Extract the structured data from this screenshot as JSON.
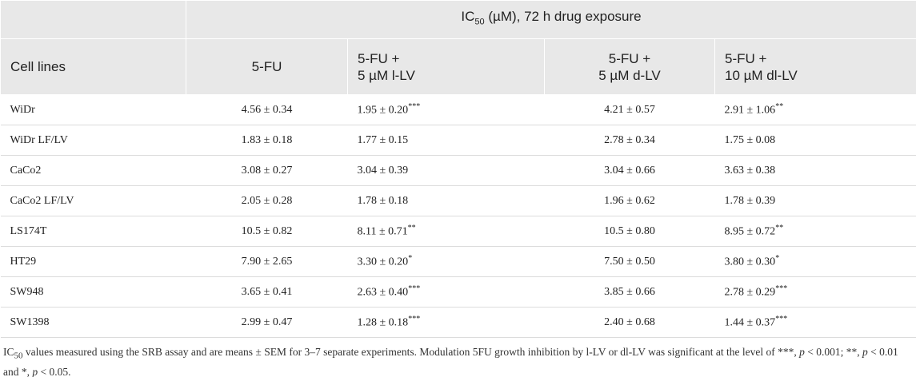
{
  "table": {
    "group_header": {
      "text": "IC",
      "subscript": "50",
      "suffix": " (µM), 72 h drug exposure"
    },
    "columns": [
      [
        "Cell lines"
      ],
      [
        "5-FU"
      ],
      [
        "5-FU +",
        "5 µM l-LV"
      ],
      [
        "5-FU +",
        "5 µM d-LV"
      ],
      [
        "5-FU +",
        "10 µM dl-LV"
      ]
    ],
    "rows": [
      [
        "WiDr",
        "4.56 ± 0.34",
        {
          "text": "1.95 ± 0.20",
          "sup": "***"
        },
        "4.21 ± 0.57",
        {
          "text": "2.91 ± 1.06",
          "sup": "**"
        }
      ],
      [
        "WiDr LF/LV",
        "1.83 ± 0.18",
        "1.77 ± 0.15",
        "2.78 ± 0.34",
        "1.75 ± 0.08"
      ],
      [
        "CaCo2",
        "3.08 ± 0.27",
        "3.04 ± 0.39",
        "3.04 ± 0.66",
        "3.63 ± 0.38"
      ],
      [
        "CaCo2 LF/LV",
        "2.05 ± 0.28",
        "1.78 ± 0.18",
        "1.96 ± 0.62",
        "1.78 ± 0.39"
      ],
      [
        "LS174T",
        "10.5 ± 0.82",
        {
          "text": "8.11 ± 0.71",
          "sup": "**"
        },
        "10.5 ± 0.80",
        {
          "text": "8.95 ± 0.72",
          "sup": "**"
        }
      ],
      [
        "HT29",
        "7.90 ± 2.65",
        {
          "text": "3.30 ± 0.20",
          "sup": "*"
        },
        "7.50 ± 0.50",
        {
          "text": "3.80 ± 0.30",
          "sup": "*"
        }
      ],
      [
        "SW948",
        "3.65 ± 0.41",
        {
          "text": "2.63 ± 0.40",
          "sup": "***"
        },
        "3.85 ± 0.66",
        {
          "text": "2.78 ± 0.29",
          "sup": "***"
        }
      ],
      [
        "SW1398",
        "2.99 ± 0.47",
        {
          "text": "1.28 ± 0.18",
          "sup": "***"
        },
        "2.40 ± 0.68",
        {
          "text": "1.44 ± 0.37",
          "sup": "***"
        }
      ]
    ]
  },
  "footnote": [
    {
      "text": "IC"
    },
    {
      "text": "50",
      "style": "sub"
    },
    {
      "text": " values measured using the SRB assay and are means ± SEM for 3–7 separate experiments. Modulation 5FU growth inhibition by l-LV or dl-LV was significant at the level of ***, "
    },
    {
      "text": "p",
      "style": "italic"
    },
    {
      "text": " < 0.001; **, "
    },
    {
      "text": "p",
      "style": "italic"
    },
    {
      "text": " < 0.01 and *, "
    },
    {
      "text": "p",
      "style": "italic"
    },
    {
      "text": " < 0.05."
    }
  ]
}
